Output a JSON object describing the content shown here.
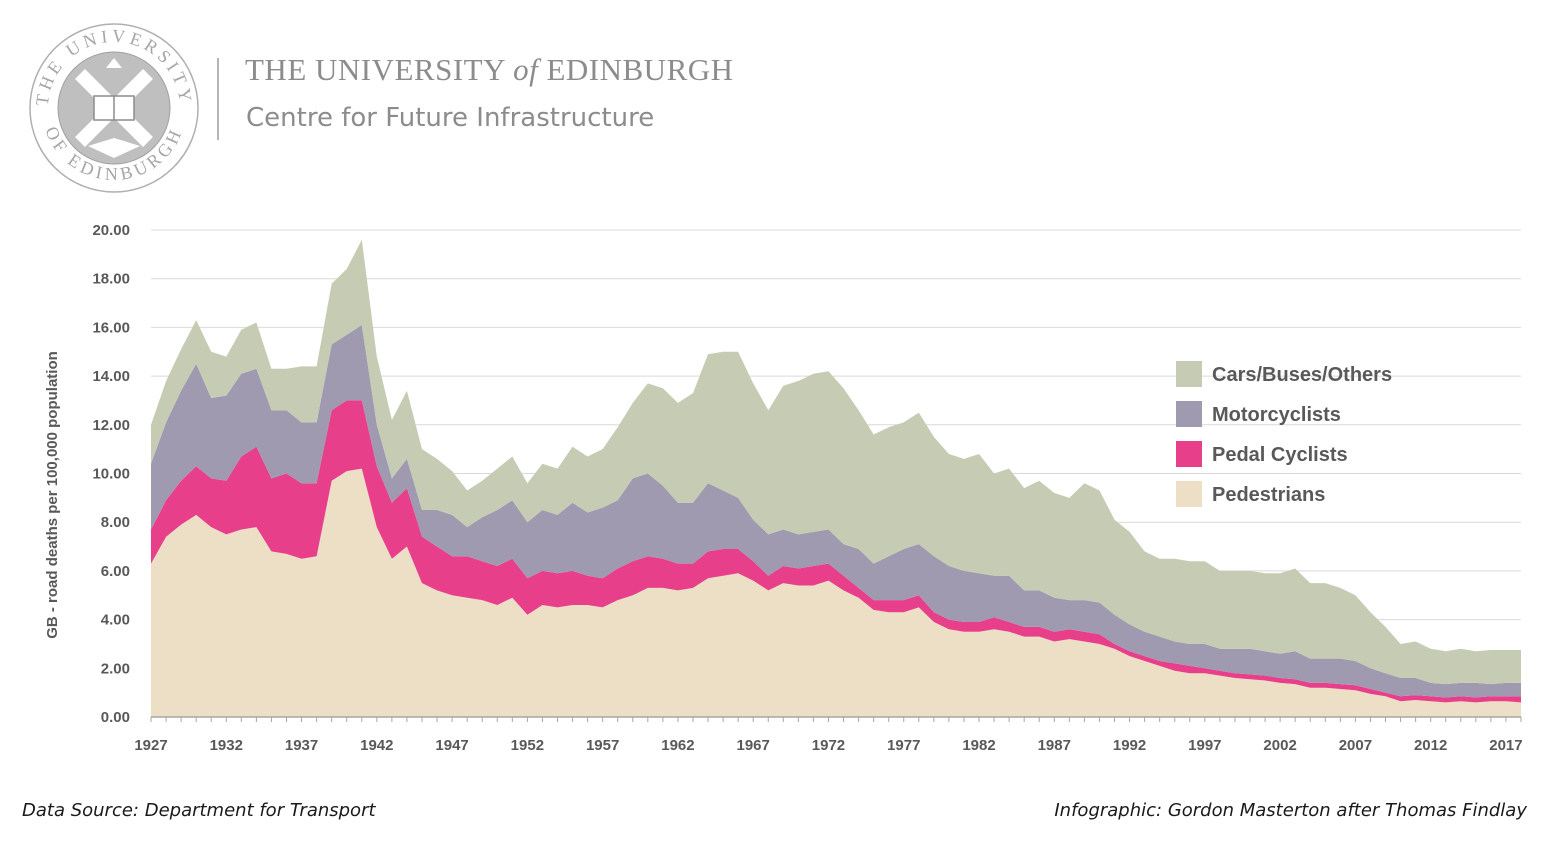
{
  "header": {
    "title_pre": "THE UNIVERSITY ",
    "title_of": "of",
    "title_post": " EDINBURGH",
    "subtitle": "Centre for Future Infrastructure",
    "seal_text_top": "THE UNIVERSITY",
    "seal_text_bottom": "OF EDINBURGH"
  },
  "footer": {
    "source": "Data Source: Department for Transport",
    "credit": "Infographic: Gordon Masterton after Thomas Findlay"
  },
  "colors": {
    "pedestrians": "#ecdfc5",
    "pedal_cyclists": "#e83f8b",
    "motorcyclists": "#9f9ab0",
    "cars": "#c6ccb3",
    "grid": "#d9d9d9",
    "text": "#595959"
  },
  "chart_data": {
    "type": "area",
    "stacked": true,
    "title": "",
    "xlabel": "",
    "ylabel": "GB - road deaths per 100,000 population",
    "ylim": [
      0,
      20
    ],
    "xlim": [
      1927,
      2018
    ],
    "y_ticks": [
      "0.00",
      "2.00",
      "4.00",
      "6.00",
      "8.00",
      "10.00",
      "12.00",
      "14.00",
      "16.00",
      "18.00",
      "20.00"
    ],
    "x_ticks": [
      "1927",
      "1932",
      "1937",
      "1942",
      "1947",
      "1952",
      "1957",
      "1962",
      "1967",
      "1972",
      "1977",
      "1982",
      "1987",
      "1992",
      "1997",
      "2002",
      "2007",
      "2012",
      "2017"
    ],
    "legend_position": "right",
    "legend_order": [
      "Cars/Buses/Others",
      "Motorcyclists",
      "Pedal Cyclists",
      "Pedestrians"
    ],
    "x": [
      1927,
      1928,
      1929,
      1930,
      1931,
      1932,
      1933,
      1934,
      1935,
      1936,
      1937,
      1938,
      1939,
      1940,
      1941,
      1942,
      1943,
      1944,
      1945,
      1946,
      1947,
      1948,
      1949,
      1950,
      1951,
      1952,
      1953,
      1954,
      1955,
      1956,
      1957,
      1958,
      1959,
      1960,
      1961,
      1962,
      1963,
      1964,
      1965,
      1966,
      1967,
      1968,
      1969,
      1970,
      1971,
      1972,
      1973,
      1974,
      1975,
      1976,
      1977,
      1978,
      1979,
      1980,
      1981,
      1982,
      1983,
      1984,
      1985,
      1986,
      1987,
      1988,
      1989,
      1990,
      1991,
      1992,
      1993,
      1994,
      1995,
      1996,
      1997,
      1998,
      1999,
      2000,
      2001,
      2002,
      2003,
      2004,
      2005,
      2006,
      2007,
      2008,
      2009,
      2010,
      2011,
      2012,
      2013,
      2014,
      2015,
      2016,
      2017,
      2018
    ],
    "cumulative_totals": {
      "Pedestrians": [
        6.3,
        7.4,
        7.9,
        8.3,
        7.8,
        7.5,
        7.7,
        7.8,
        6.8,
        6.7,
        6.5,
        6.6,
        9.7,
        10.1,
        10.2,
        7.8,
        6.5,
        7.0,
        5.5,
        5.2,
        5.0,
        4.9,
        4.8,
        4.6,
        4.9,
        4.2,
        4.6,
        4.5,
        4.6,
        4.6,
        4.5,
        4.8,
        5.0,
        5.3,
        5.3,
        5.2,
        5.3,
        5.7,
        5.8,
        5.9,
        5.6,
        5.2,
        5.5,
        5.4,
        5.4,
        5.6,
        5.2,
        4.9,
        4.4,
        4.3,
        4.3,
        4.5,
        3.9,
        3.6,
        3.5,
        3.5,
        3.6,
        3.5,
        3.3,
        3.3,
        3.1,
        3.2,
        3.1,
        3.0,
        2.8,
        2.5,
        2.3,
        2.1,
        1.9,
        1.8,
        1.8,
        1.7,
        1.6,
        1.55,
        1.5,
        1.4,
        1.35,
        1.2,
        1.2,
        1.15,
        1.1,
        0.95,
        0.85,
        0.65,
        0.7,
        0.65,
        0.6,
        0.65,
        0.6,
        0.65,
        0.65,
        0.6
      ],
      "Pedal Cyclists": [
        7.7,
        8.9,
        9.7,
        10.3,
        9.8,
        9.7,
        10.7,
        11.1,
        9.8,
        10.0,
        9.6,
        9.6,
        12.6,
        13.0,
        13.0,
        10.3,
        8.8,
        9.4,
        7.4,
        7.0,
        6.6,
        6.6,
        6.4,
        6.2,
        6.5,
        5.7,
        6.0,
        5.9,
        6.0,
        5.8,
        5.7,
        6.1,
        6.4,
        6.6,
        6.5,
        6.3,
        6.3,
        6.8,
        6.9,
        6.9,
        6.4,
        5.8,
        6.2,
        6.1,
        6.2,
        6.3,
        5.8,
        5.3,
        4.8,
        4.8,
        4.8,
        5.0,
        4.3,
        4.0,
        3.9,
        3.9,
        4.1,
        3.9,
        3.7,
        3.7,
        3.5,
        3.6,
        3.5,
        3.4,
        3.0,
        2.7,
        2.5,
        2.3,
        2.2,
        2.1,
        2.0,
        1.9,
        1.8,
        1.75,
        1.7,
        1.6,
        1.55,
        1.4,
        1.4,
        1.35,
        1.3,
        1.15,
        1.0,
        0.85,
        0.9,
        0.85,
        0.8,
        0.85,
        0.8,
        0.85,
        0.85,
        0.85
      ],
      "Motorcyclists": [
        10.4,
        12.1,
        13.4,
        14.5,
        13.1,
        13.2,
        14.1,
        14.3,
        12.6,
        12.6,
        12.1,
        12.1,
        15.3,
        15.7,
        16.1,
        12.0,
        9.8,
        10.6,
        8.5,
        8.5,
        8.3,
        7.8,
        8.2,
        8.5,
        8.9,
        8.0,
        8.5,
        8.3,
        8.8,
        8.4,
        8.6,
        8.9,
        9.8,
        10.0,
        9.5,
        8.8,
        8.8,
        9.6,
        9.3,
        9.0,
        8.1,
        7.5,
        7.7,
        7.5,
        7.6,
        7.7,
        7.1,
        6.9,
        6.3,
        6.6,
        6.9,
        7.1,
        6.6,
        6.2,
        6.0,
        5.9,
        5.8,
        5.8,
        5.2,
        5.2,
        4.9,
        4.8,
        4.8,
        4.7,
        4.2,
        3.8,
        3.5,
        3.3,
        3.1,
        3.0,
        3.0,
        2.8,
        2.8,
        2.8,
        2.7,
        2.6,
        2.7,
        2.4,
        2.4,
        2.4,
        2.3,
        2.0,
        1.8,
        1.6,
        1.6,
        1.4,
        1.35,
        1.4,
        1.4,
        1.35,
        1.4,
        1.4
      ],
      "Cars/Buses/Others": [
        12.0,
        13.8,
        15.1,
        16.3,
        15.0,
        14.8,
        15.9,
        16.2,
        14.3,
        14.3,
        14.4,
        14.4,
        17.8,
        18.4,
        19.6,
        14.8,
        12.2,
        13.4,
        11.0,
        10.6,
        10.1,
        9.3,
        9.7,
        10.2,
        10.7,
        9.6,
        10.4,
        10.2,
        11.1,
        10.7,
        11.0,
        11.9,
        12.9,
        13.7,
        13.5,
        12.9,
        13.3,
        14.9,
        15.0,
        15.0,
        13.7,
        12.6,
        13.6,
        13.8,
        14.1,
        14.2,
        13.5,
        12.6,
        11.6,
        11.9,
        12.1,
        12.5,
        11.5,
        10.8,
        10.6,
        10.8,
        10.0,
        10.2,
        9.4,
        9.7,
        9.2,
        9.0,
        9.6,
        9.3,
        8.1,
        7.6,
        6.8,
        6.5,
        6.5,
        6.4,
        6.4,
        6.0,
        6.0,
        6.0,
        5.9,
        5.9,
        6.1,
        5.5,
        5.5,
        5.3,
        5.0,
        4.3,
        3.7,
        3.0,
        3.1,
        2.8,
        2.7,
        2.8,
        2.7,
        2.75,
        2.75,
        2.75
      ]
    },
    "series": [
      {
        "name": "Pedestrians",
        "color": "#ecdfc5"
      },
      {
        "name": "Pedal Cyclists",
        "color": "#e83f8b"
      },
      {
        "name": "Motorcyclists",
        "color": "#9f9ab0"
      },
      {
        "name": "Cars/Buses/Others",
        "color": "#c6ccb3"
      }
    ]
  }
}
